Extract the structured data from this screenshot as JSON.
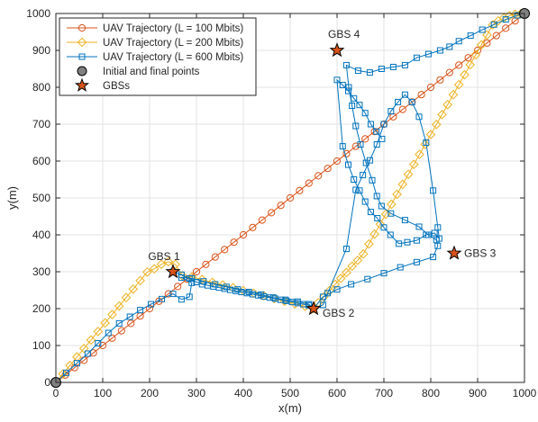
{
  "chart_data": {
    "type": "line",
    "xlabel": "x(m)",
    "ylabel": "y(m)",
    "xlim": [
      0,
      1000
    ],
    "ylim": [
      0,
      1000
    ],
    "xticks": [
      0,
      100,
      200,
      300,
      400,
      500,
      600,
      700,
      800,
      900,
      1000
    ],
    "yticks": [
      0,
      100,
      200,
      300,
      400,
      500,
      600,
      700,
      800,
      900,
      1000
    ],
    "grid": true,
    "legend_position": "top-left",
    "legend": [
      "UAV Trajectory (L = 100 Mbits)",
      "UAV Trajectory (L = 200 Mbits)",
      "UAV Trajectory (L = 600 Mbits)",
      "Initial and final points",
      "GBSs"
    ],
    "series": [
      {
        "name": "UAV Trajectory (L = 100 Mbits)",
        "color": "#D95319",
        "marker": "circle",
        "x": [
          0,
          20,
          40,
          60,
          80,
          100,
          120,
          140,
          160,
          180,
          200,
          220,
          240,
          260,
          280,
          300,
          320,
          340,
          360,
          380,
          400,
          420,
          440,
          460,
          480,
          500,
          520,
          540,
          560,
          580,
          600,
          620,
          640,
          660,
          680,
          700,
          720,
          740,
          760,
          780,
          800,
          820,
          840,
          860,
          880,
          900,
          920,
          940,
          960,
          980,
          1000
        ],
        "y": [
          0,
          20,
          40,
          60,
          80,
          100,
          120,
          140,
          160,
          180,
          200,
          220,
          240,
          260,
          280,
          300,
          320,
          340,
          360,
          380,
          400,
          420,
          440,
          460,
          480,
          500,
          520,
          540,
          560,
          580,
          600,
          620,
          640,
          660,
          680,
          700,
          720,
          740,
          760,
          780,
          800,
          820,
          840,
          860,
          880,
          900,
          920,
          940,
          960,
          980,
          1000
        ]
      },
      {
        "name": "UAV Trajectory (L = 200 Mbits)",
        "color": "#EDB120",
        "marker": "diamond",
        "x": [
          0,
          15,
          30,
          45,
          60,
          75,
          90,
          105,
          120,
          135,
          150,
          165,
          180,
          195,
          210,
          225,
          240,
          255,
          270,
          290,
          312,
          334,
          356,
          378,
          400,
          422,
          444,
          466,
          488,
          510,
          532,
          550,
          560,
          572,
          584,
          596,
          608,
          620,
          632,
          644,
          656,
          668,
          680,
          692,
          704,
          716,
          728,
          740,
          752,
          764,
          776,
          788,
          800,
          812,
          824,
          836,
          848,
          860,
          872,
          884,
          896,
          908,
          920,
          932,
          944,
          956,
          968,
          980,
          992,
          1000
        ],
        "y": [
          0,
          23,
          46,
          69,
          92,
          115,
          138,
          161,
          184,
          207,
          230,
          253,
          276,
          299,
          308,
          320,
          327,
          320,
          289,
          286,
          279,
          271,
          264,
          257,
          249,
          242,
          235,
          227,
          220,
          213,
          206,
          200,
          216,
          232,
          249,
          266,
          282,
          298,
          315,
          331,
          348,
          375,
          402,
          429,
          456,
          483,
          510,
          537,
          564,
          591,
          618,
          645,
          672,
          699,
          726,
          753,
          780,
          807,
          834,
          861,
          888,
          915,
          942,
          969,
          980,
          988,
          994,
          998,
          999,
          1000
        ]
      },
      {
        "name": "UAV Trajectory (L = 600 Mbits)",
        "color": "#0072BD",
        "marker": "square",
        "x": [
          0,
          22,
          45,
          68,
          90,
          112,
          135,
          158,
          180,
          203,
          226,
          250,
          268,
          285,
          290,
          268,
          290,
          315,
          340,
          364,
          388,
          412,
          438,
          464,
          490,
          516,
          540,
          550,
          570,
          600,
          630,
          665,
          700,
          735,
          770,
          805,
          815,
          812,
          795,
          775,
          745,
          715,
          695,
          685,
          675,
          662,
          650,
          640,
          632,
          625,
          620,
          645,
          670,
          695,
          720,
          745,
          770,
          795,
          820,
          840,
          860,
          885,
          910,
          935,
          960,
          985,
          1000
        ],
        "y": [
          0,
          26,
          52,
          78,
          106,
          134,
          160,
          178,
          196,
          212,
          226,
          240,
          225,
          232,
          270,
          284,
          282,
          274,
          266,
          259,
          252,
          245,
          238,
          230,
          224,
          219,
          212,
          200,
          232,
          252,
          266,
          280,
          296,
          312,
          326,
          340,
          370,
          386,
          400,
          422,
          440,
          458,
          478,
          505,
          548,
          595,
          645,
          695,
          750,
          800,
          860,
          845,
          840,
          850,
          855,
          860,
          880,
          890,
          900,
          910,
          925,
          940,
          956,
          970,
          984,
          995,
          1000
        ]
      },
      {
        "name": "UAV Trajectory (L = 600 Mbits)",
        "color": "#0072BD",
        "marker": "square",
        "x": [
          250,
          268,
          285,
          300,
          312,
          324,
          336,
          348,
          360,
          372,
          384,
          396,
          408,
          420,
          432,
          444,
          456,
          468,
          480,
          492,
          504,
          516,
          528,
          540,
          550,
          570,
          580,
          620,
          640,
          655,
          670,
          685,
          700,
          715,
          730,
          745,
          760,
          775,
          790,
          805,
          815,
          818,
          808,
          790,
          770,
          750,
          732,
          714,
          700,
          686,
          672,
          660,
          648,
          636,
          624,
          612,
          600,
          612,
          624,
          636,
          648,
          660,
          672,
          684,
          696
        ],
        "y": [
          300,
          292,
          282,
          272,
          266,
          263,
          260,
          257,
          254,
          251,
          248,
          245,
          242,
          239,
          236,
          233,
          230,
          227,
          224,
          221,
          218,
          215,
          212,
          209,
          200,
          210,
          242,
          362,
          522,
          562,
          602,
          645,
          700,
          735,
          760,
          780,
          760,
          720,
          650,
          520,
          420,
          390,
          405,
          400,
          385,
          380,
          376,
          400,
          420,
          445,
          462,
          490,
          520,
          550,
          590,
          640,
          820,
          806,
          790,
          770,
          752,
          730,
          700,
          680,
          660
        ]
      }
    ],
    "points": {
      "initial_final": {
        "label": "Initial and final points",
        "color": "#808080",
        "x": [
          0,
          1000
        ],
        "y": [
          0,
          1000
        ]
      },
      "gbs": {
        "label": "GBSs",
        "color": "#D95319",
        "x": [
          250,
          550,
          850,
          600
        ],
        "y": [
          300,
          200,
          350,
          900
        ],
        "names": [
          "GBS 1",
          "GBS 2",
          "GBS 3",
          "GBS 4"
        ]
      }
    }
  }
}
